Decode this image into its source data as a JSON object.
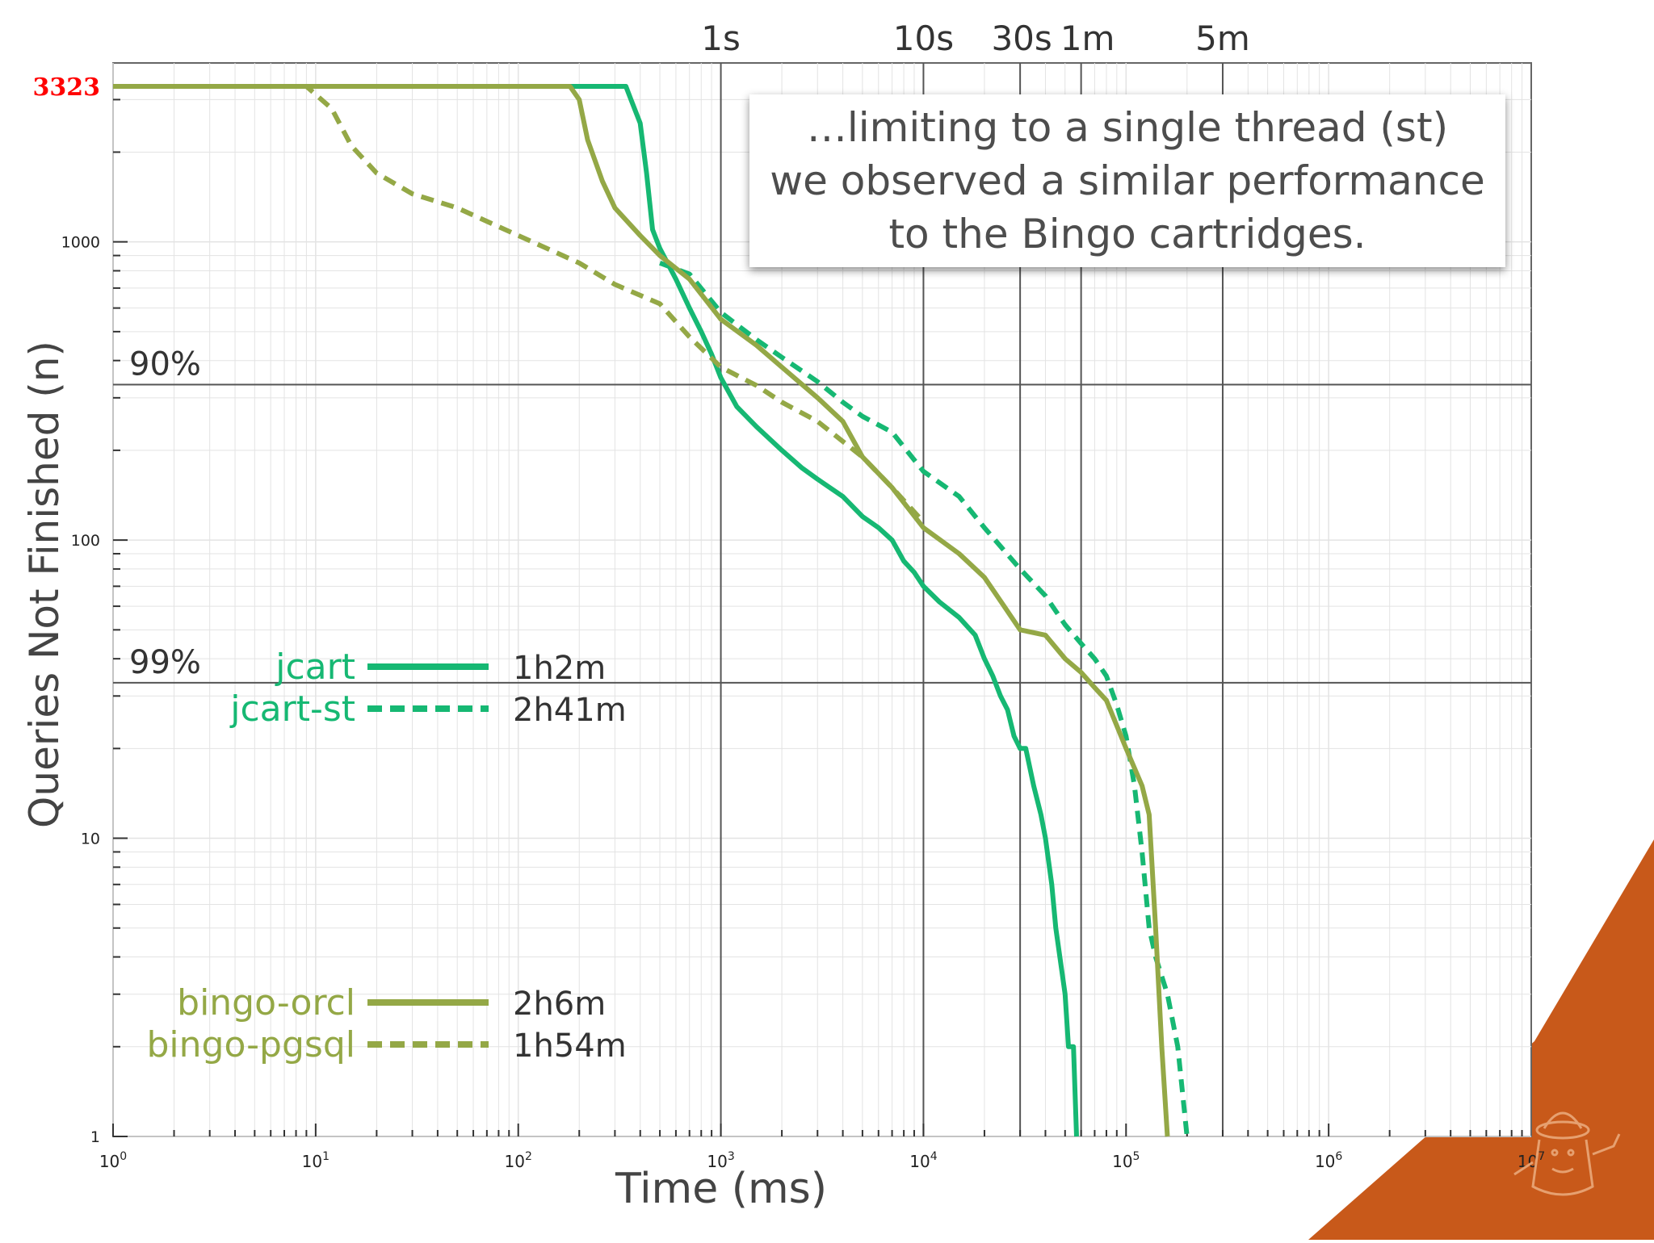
{
  "callout": {
    "lines": [
      "…limiting to a single thread (st)",
      "we observed a similar performance",
      "to the Bingo cartridges."
    ]
  },
  "colors": {
    "jcart": "#16b873",
    "bingo": "#94a846",
    "grid_major": "#555555",
    "grid_minor": "#e3e3e3",
    "total_label": "#ff0000",
    "decor_orange": "#c8591a"
  },
  "chart_data": {
    "type": "line",
    "title": "",
    "xlabel": "Time (ms)",
    "ylabel": "Queries Not Finished (n)",
    "x_scale": "log",
    "y_scale": "log",
    "xlim": [
      1,
      10000000
    ],
    "ylim": [
      1,
      3323
    ],
    "total_label": "3323",
    "x_ticks": [
      {
        "value": 1,
        "base": "10",
        "exp": "0"
      },
      {
        "value": 10,
        "base": "10",
        "exp": "1"
      },
      {
        "value": 100,
        "base": "10",
        "exp": "2"
      },
      {
        "value": 1000,
        "base": "10",
        "exp": "3"
      },
      {
        "value": 10000,
        "base": "10",
        "exp": "4"
      },
      {
        "value": 100000,
        "base": "10",
        "exp": "5"
      },
      {
        "value": 1000000,
        "base": "10",
        "exp": "6"
      },
      {
        "value": 10000000,
        "base": "10",
        "exp": "7"
      }
    ],
    "y_ticks": [
      {
        "value": 1,
        "label": "1"
      },
      {
        "value": 10,
        "label": "10"
      },
      {
        "value": 100,
        "label": "100"
      },
      {
        "value": 1000,
        "label": "1000"
      }
    ],
    "time_markers": [
      {
        "value": 1000,
        "label": "1s"
      },
      {
        "value": 10000,
        "label": "10s"
      },
      {
        "value": 30000,
        "label": "30s"
      },
      {
        "value": 60000,
        "label": "1m"
      },
      {
        "value": 300000,
        "label": "5m"
      }
    ],
    "percent_markers": [
      {
        "value": 332.3,
        "label": "90%"
      },
      {
        "value": 33.23,
        "label": "99%"
      }
    ],
    "series": [
      {
        "name": "jcart",
        "duration": "1h2m",
        "style": "solid",
        "color": "#16b873",
        "points": [
          [
            1,
            3323
          ],
          [
            340,
            3323
          ],
          [
            360,
            3000
          ],
          [
            400,
            2500
          ],
          [
            430,
            1700
          ],
          [
            460,
            1100
          ],
          [
            500,
            950
          ],
          [
            600,
            750
          ],
          [
            700,
            600
          ],
          [
            800,
            500
          ],
          [
            900,
            420
          ],
          [
            1000,
            350
          ],
          [
            1200,
            280
          ],
          [
            1500,
            240
          ],
          [
            2000,
            200
          ],
          [
            2500,
            175
          ],
          [
            3000,
            160
          ],
          [
            4000,
            140
          ],
          [
            5000,
            120
          ],
          [
            6000,
            110
          ],
          [
            7000,
            100
          ],
          [
            8000,
            85
          ],
          [
            9000,
            78
          ],
          [
            10000,
            70
          ],
          [
            12000,
            62
          ],
          [
            15000,
            55
          ],
          [
            18000,
            48
          ],
          [
            20000,
            40
          ],
          [
            22000,
            35
          ],
          [
            24000,
            30
          ],
          [
            26000,
            27
          ],
          [
            28000,
            22
          ],
          [
            30000,
            20
          ],
          [
            32000,
            20
          ],
          [
            35000,
            15
          ],
          [
            38000,
            12
          ],
          [
            40000,
            10
          ],
          [
            43000,
            7
          ],
          [
            45000,
            5
          ],
          [
            50000,
            3
          ],
          [
            52000,
            2
          ],
          [
            55000,
            2
          ],
          [
            57000,
            1
          ]
        ]
      },
      {
        "name": "jcart-st",
        "duration": "2h41m",
        "style": "dashed",
        "color": "#16b873",
        "points": [
          [
            500,
            850
          ],
          [
            700,
            780
          ],
          [
            1000,
            580
          ],
          [
            1500,
            470
          ],
          [
            2000,
            410
          ],
          [
            3000,
            340
          ],
          [
            4000,
            290
          ],
          [
            5000,
            260
          ],
          [
            7000,
            230
          ],
          [
            10000,
            170
          ],
          [
            15000,
            140
          ],
          [
            20000,
            110
          ],
          [
            30000,
            80
          ],
          [
            40000,
            65
          ],
          [
            50000,
            52
          ],
          [
            60000,
            45
          ],
          [
            70000,
            40
          ],
          [
            80000,
            35
          ],
          [
            90000,
            28
          ],
          [
            100000,
            22
          ],
          [
            110000,
            15
          ],
          [
            120000,
            9
          ],
          [
            130000,
            5
          ],
          [
            140000,
            4
          ],
          [
            160000,
            3
          ],
          [
            180000,
            2
          ],
          [
            200000,
            1
          ],
          [
            210000,
            1
          ]
        ]
      },
      {
        "name": "bingo-orcl",
        "duration": "2h6m",
        "style": "solid",
        "color": "#94a846",
        "points": [
          [
            1,
            3323
          ],
          [
            180,
            3323
          ],
          [
            200,
            3000
          ],
          [
            220,
            2200
          ],
          [
            260,
            1600
          ],
          [
            300,
            1300
          ],
          [
            400,
            1050
          ],
          [
            500,
            900
          ],
          [
            700,
            750
          ],
          [
            1000,
            550
          ],
          [
            1500,
            450
          ],
          [
            2000,
            380
          ],
          [
            3000,
            300
          ],
          [
            4000,
            250
          ],
          [
            5000,
            190
          ],
          [
            7000,
            150
          ],
          [
            10000,
            110
          ],
          [
            15000,
            90
          ],
          [
            20000,
            75
          ],
          [
            25000,
            60
          ],
          [
            30000,
            50
          ],
          [
            40000,
            48
          ],
          [
            50000,
            40
          ],
          [
            60000,
            36
          ],
          [
            70000,
            32
          ],
          [
            80000,
            29
          ],
          [
            100000,
            20
          ],
          [
            120000,
            15
          ],
          [
            130000,
            12
          ],
          [
            140000,
            5
          ],
          [
            150000,
            2
          ],
          [
            160000,
            1
          ]
        ]
      },
      {
        "name": "bingo-pgsql",
        "duration": "1h54m",
        "style": "dashed",
        "color": "#94a846",
        "points": [
          [
            1,
            3323
          ],
          [
            9,
            3323
          ],
          [
            12,
            2800
          ],
          [
            15,
            2100
          ],
          [
            20,
            1700
          ],
          [
            30,
            1450
          ],
          [
            50,
            1300
          ],
          [
            100,
            1050
          ],
          [
            200,
            850
          ],
          [
            300,
            720
          ],
          [
            500,
            620
          ],
          [
            700,
            480
          ],
          [
            1000,
            380
          ],
          [
            1500,
            330
          ],
          [
            2000,
            290
          ],
          [
            3000,
            250
          ],
          [
            5000,
            190
          ],
          [
            7000,
            150
          ],
          [
            10000,
            115
          ]
        ]
      }
    ],
    "legend": {
      "placement": "left, inside plot",
      "groups": [
        {
          "series": [
            "jcart",
            "jcart-st"
          ]
        },
        {
          "series": [
            "bingo-orcl",
            "bingo-pgsql"
          ]
        }
      ]
    },
    "grid": true
  }
}
